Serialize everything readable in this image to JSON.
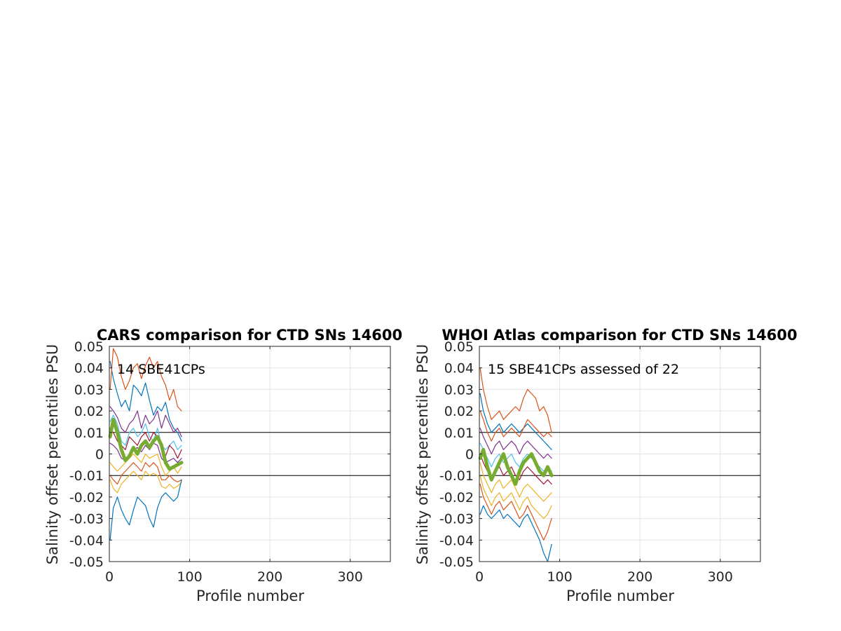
{
  "chart_data": [
    {
      "type": "line",
      "title": "CARS comparison for CTD SNs 14600",
      "xlabel": "Profile number",
      "ylabel": "Salinity offset percentiles PSU",
      "annotation": "14 SBE41CPs",
      "xlim": [
        0,
        350
      ],
      "ylim": [
        -0.05,
        0.05
      ],
      "xticks": [
        0,
        100,
        200,
        300
      ],
      "xtick_labels": [
        "0",
        "100",
        "200",
        "300"
      ],
      "yticks": [
        0.05,
        0.04,
        0.03,
        0.02,
        0.01,
        0,
        -0.01,
        -0.02,
        -0.03,
        -0.04,
        -0.05
      ],
      "ytick_labels": [
        "0.05",
        "0.04",
        "0.03",
        "0.02",
        "0.01",
        "0",
        "-0.01",
        "-0.02",
        "-0.03",
        "-0.04",
        "-0.05"
      ],
      "grid": true,
      "reference_lines": [
        0.01,
        -0.01
      ],
      "series": [
        {
          "color": "#0072BD",
          "x": [
            1,
            5,
            10,
            15,
            20,
            25,
            30,
            35,
            40,
            45,
            50,
            55,
            60,
            65,
            70,
            75,
            80,
            85,
            90
          ],
          "y": [
            0.043,
            0.035,
            0.028,
            0.022,
            0.025,
            0.02,
            0.032,
            0.03,
            0.027,
            0.033,
            0.025,
            0.018,
            0.022,
            0.02,
            0.024,
            0.016,
            0.012,
            0.01,
            0.006
          ]
        },
        {
          "color": "#D95319",
          "x": [
            1,
            5,
            10,
            15,
            20,
            25,
            30,
            35,
            40,
            45,
            50,
            55,
            60,
            65,
            70,
            75,
            80,
            85,
            90
          ],
          "y": [
            0.03,
            0.049,
            0.045,
            0.036,
            0.03,
            0.034,
            0.04,
            0.042,
            0.035,
            0.041,
            0.045,
            0.04,
            0.043,
            0.036,
            0.032,
            0.025,
            0.03,
            0.022,
            0.02
          ]
        },
        {
          "color": "#7E2F8E",
          "x": [
            1,
            5,
            10,
            15,
            20,
            25,
            30,
            35,
            40,
            45,
            50,
            55,
            60,
            65,
            70,
            75,
            80,
            85,
            90
          ],
          "y": [
            0.022,
            0.02,
            0.017,
            0.012,
            0.01,
            0.014,
            0.016,
            0.02,
            0.012,
            0.018,
            0.014,
            0.016,
            0.02,
            0.012,
            0.018,
            0.014,
            0.01,
            0.012,
            0.008
          ]
        },
        {
          "color": "#4DBEEE",
          "x": [
            1,
            5,
            10,
            15,
            20,
            25,
            30,
            35,
            40,
            45,
            50,
            55,
            60,
            65,
            70,
            75,
            80,
            85,
            90
          ],
          "y": [
            0.015,
            0.018,
            0.014,
            0.006,
            0.004,
            0.01,
            0.012,
            0.008,
            0.01,
            0.014,
            0.008,
            0.006,
            0.012,
            0.004,
            0.002,
            0.004,
            0.006,
            0.002,
            0.004
          ]
        },
        {
          "color": "#A2142F",
          "x": [
            1,
            5,
            10,
            15,
            20,
            25,
            30,
            35,
            40,
            45,
            50,
            55,
            60,
            65,
            70,
            75,
            80,
            85,
            90
          ],
          "y": [
            0.012,
            0.01,
            0.006,
            0.004,
            0.002,
            0.008,
            0.006,
            0.004,
            0.008,
            0.01,
            0.006,
            0.01,
            0.008,
            0.003,
            -0.001,
            0.004,
            0.002,
            -0.002,
            0.002
          ]
        },
        {
          "color": "#7E2F8E",
          "x": [
            1,
            5,
            10,
            15,
            20,
            25,
            30,
            35,
            40,
            45,
            50,
            55,
            60,
            65,
            70,
            75,
            80,
            85,
            90
          ],
          "y": [
            0.005,
            0.004,
            0.002,
            -0.002,
            -0.003,
            0.0,
            0.002,
            0.003,
            0.001,
            0.004,
            0.002,
            0.005,
            0.004,
            -0.002,
            -0.004,
            -0.003,
            -0.002,
            -0.004,
            -0.002
          ]
        },
        {
          "color": "#EDB120",
          "x": [
            1,
            5,
            10,
            15,
            20,
            25,
            30,
            35,
            40,
            45,
            50,
            55,
            60,
            65,
            70,
            75,
            80,
            85,
            90
          ],
          "y": [
            -0.004,
            -0.006,
            -0.008,
            -0.006,
            -0.004,
            -0.002,
            0.0,
            -0.002,
            -0.004,
            0.0,
            -0.002,
            -0.001,
            0.0,
            -0.006,
            -0.01,
            -0.008,
            -0.006,
            -0.009,
            -0.006
          ]
        },
        {
          "color": "#D95319",
          "x": [
            1,
            5,
            10,
            15,
            20,
            25,
            30,
            35,
            40,
            45,
            50,
            55,
            60,
            65,
            70,
            75,
            80,
            85,
            90
          ],
          "y": [
            -0.01,
            -0.012,
            -0.014,
            -0.01,
            -0.008,
            -0.006,
            -0.004,
            -0.006,
            -0.008,
            -0.004,
            -0.006,
            -0.004,
            -0.006,
            -0.012,
            -0.012,
            -0.01,
            -0.012,
            -0.013,
            -0.012
          ]
        },
        {
          "color": "#EDB120",
          "x": [
            1,
            5,
            10,
            15,
            20,
            25,
            30,
            35,
            40,
            45,
            50,
            55,
            60,
            65,
            70,
            75,
            80,
            85,
            90
          ],
          "y": [
            -0.012,
            -0.016,
            -0.018,
            -0.014,
            -0.012,
            -0.01,
            -0.008,
            -0.01,
            -0.012,
            -0.008,
            -0.01,
            -0.009,
            -0.01,
            -0.015,
            -0.016,
            -0.014,
            -0.016,
            -0.015,
            -0.013
          ]
        },
        {
          "color": "#0072BD",
          "x": [
            1,
            5,
            10,
            15,
            20,
            25,
            30,
            35,
            40,
            45,
            50,
            55,
            60,
            65,
            70,
            75,
            80,
            85,
            90
          ],
          "y": [
            -0.04,
            -0.025,
            -0.02,
            -0.026,
            -0.03,
            -0.033,
            -0.026,
            -0.02,
            -0.022,
            -0.024,
            -0.03,
            -0.034,
            -0.025,
            -0.02,
            -0.018,
            -0.02,
            -0.022,
            -0.02,
            -0.012
          ]
        },
        {
          "color": "#77AC30",
          "width": 5,
          "x": [
            1,
            5,
            10,
            15,
            20,
            25,
            30,
            35,
            40,
            45,
            50,
            55,
            60,
            65,
            70,
            75,
            80,
            85,
            90
          ],
          "y": [
            0.008,
            0.016,
            0.01,
            0.002,
            -0.003,
            -0.001,
            0.003,
            0.0,
            0.004,
            0.006,
            0.003,
            0.006,
            0.008,
            0.004,
            -0.004,
            -0.007,
            -0.006,
            -0.005,
            -0.004
          ]
        }
      ]
    },
    {
      "type": "line",
      "title": "WHOI Atlas comparison for CTD SNs 14600",
      "xlabel": "Profile number",
      "ylabel": "Salinity offset percentiles PSU",
      "annotation": "15 SBE41CPs assessed of 22",
      "xlim": [
        0,
        350
      ],
      "ylim": [
        -0.05,
        0.05
      ],
      "xticks": [
        0,
        100,
        200,
        300
      ],
      "xtick_labels": [
        "0",
        "100",
        "200",
        "300"
      ],
      "yticks": [
        0.05,
        0.04,
        0.03,
        0.02,
        0.01,
        0,
        -0.01,
        -0.02,
        -0.03,
        -0.04,
        -0.05
      ],
      "ytick_labels": [
        "0.05",
        "0.04",
        "0.03",
        "0.02",
        "0.01",
        "0",
        "-0.01",
        "-0.02",
        "-0.03",
        "-0.04",
        "-0.05"
      ],
      "grid": true,
      "reference_lines": [
        0.01,
        -0.01
      ],
      "series": [
        {
          "color": "#D95319",
          "x": [
            1,
            5,
            10,
            15,
            20,
            25,
            30,
            35,
            40,
            45,
            50,
            55,
            60,
            65,
            70,
            75,
            80,
            85,
            90
          ],
          "y": [
            0.04,
            0.03,
            0.022,
            0.016,
            0.018,
            0.02,
            0.016,
            0.018,
            0.02,
            0.022,
            0.02,
            0.026,
            0.03,
            0.028,
            0.026,
            0.02,
            0.022,
            0.018,
            0.01
          ]
        },
        {
          "color": "#0072BD",
          "x": [
            1,
            5,
            10,
            15,
            20,
            25,
            30,
            35,
            40,
            45,
            50,
            55,
            60,
            65,
            70,
            75,
            80,
            85,
            90
          ],
          "y": [
            0.028,
            0.02,
            0.014,
            0.01,
            0.012,
            0.014,
            0.01,
            0.012,
            0.014,
            0.012,
            0.01,
            0.012,
            0.014,
            0.012,
            0.01,
            0.008,
            0.006,
            0.004,
            0.002
          ]
        },
        {
          "color": "#D95319",
          "x": [
            1,
            5,
            10,
            15,
            20,
            25,
            30,
            35,
            40,
            45,
            50,
            55,
            60,
            65,
            70,
            75,
            80,
            85,
            90
          ],
          "y": [
            0.02,
            0.016,
            0.01,
            0.006,
            0.01,
            0.012,
            0.008,
            0.01,
            0.012,
            0.01,
            0.008,
            0.012,
            0.016,
            0.014,
            0.012,
            0.01,
            0.008,
            0.01,
            0.008
          ]
        },
        {
          "color": "#7E2F8E",
          "x": [
            1,
            5,
            10,
            15,
            20,
            25,
            30,
            35,
            40,
            45,
            50,
            55,
            60,
            65,
            70,
            75,
            80,
            85,
            90
          ],
          "y": [
            0.012,
            0.008,
            0.004,
            0.0,
            0.004,
            0.006,
            0.002,
            0.004,
            0.006,
            0.004,
            0.0,
            0.004,
            0.006,
            0.004,
            0.002,
            0.0,
            -0.002,
            0.0,
            -0.002
          ]
        },
        {
          "color": "#4DBEEE",
          "x": [
            1,
            5,
            10,
            15,
            20,
            25,
            30,
            35,
            40,
            45,
            50,
            55,
            60,
            65,
            70,
            75,
            80,
            85,
            90
          ],
          "y": [
            0.005,
            0.002,
            -0.002,
            -0.006,
            -0.002,
            0.0,
            -0.004,
            -0.002,
            0.0,
            -0.004,
            -0.006,
            -0.002,
            0.0,
            -0.002,
            -0.004,
            -0.006,
            -0.008,
            -0.006,
            -0.008
          ]
        },
        {
          "color": "#A2142F",
          "x": [
            1,
            5,
            10,
            15,
            20,
            25,
            30,
            35,
            40,
            45,
            50,
            55,
            60,
            65,
            70,
            75,
            80,
            85,
            90
          ],
          "y": [
            0.0,
            -0.004,
            -0.008,
            -0.012,
            -0.008,
            -0.006,
            -0.01,
            -0.008,
            -0.006,
            -0.01,
            -0.012,
            -0.008,
            -0.006,
            -0.008,
            -0.01,
            -0.012,
            -0.014,
            -0.012,
            -0.014
          ]
        },
        {
          "color": "#EDB120",
          "x": [
            1,
            5,
            10,
            15,
            20,
            25,
            30,
            35,
            40,
            45,
            50,
            55,
            60,
            65,
            70,
            75,
            80,
            85,
            90
          ],
          "y": [
            -0.004,
            -0.01,
            -0.014,
            -0.018,
            -0.014,
            -0.012,
            -0.016,
            -0.014,
            -0.012,
            -0.016,
            -0.02,
            -0.016,
            -0.014,
            -0.016,
            -0.018,
            -0.02,
            -0.022,
            -0.02,
            -0.018
          ]
        },
        {
          "color": "#EDB120",
          "x": [
            1,
            5,
            10,
            15,
            20,
            25,
            30,
            35,
            40,
            45,
            50,
            55,
            60,
            65,
            70,
            75,
            80,
            85,
            90
          ],
          "y": [
            -0.01,
            -0.016,
            -0.02,
            -0.024,
            -0.02,
            -0.018,
            -0.022,
            -0.02,
            -0.018,
            -0.022,
            -0.026,
            -0.022,
            -0.02,
            -0.024,
            -0.026,
            -0.028,
            -0.03,
            -0.028,
            -0.024
          ]
        },
        {
          "color": "#D95319",
          "x": [
            1,
            5,
            10,
            15,
            20,
            25,
            30,
            35,
            40,
            45,
            50,
            55,
            60,
            65,
            70,
            75,
            80,
            85,
            90
          ],
          "y": [
            -0.014,
            -0.02,
            -0.024,
            -0.028,
            -0.024,
            -0.022,
            -0.026,
            -0.024,
            -0.022,
            -0.026,
            -0.03,
            -0.028,
            -0.024,
            -0.028,
            -0.032,
            -0.036,
            -0.04,
            -0.036,
            -0.03
          ]
        },
        {
          "color": "#0072BD",
          "x": [
            1,
            5,
            10,
            15,
            20,
            25,
            30,
            35,
            40,
            45,
            50,
            55,
            60,
            65,
            70,
            75,
            80,
            85,
            90
          ],
          "y": [
            -0.028,
            -0.024,
            -0.028,
            -0.03,
            -0.028,
            -0.026,
            -0.03,
            -0.028,
            -0.03,
            -0.032,
            -0.034,
            -0.03,
            -0.028,
            -0.032,
            -0.036,
            -0.04,
            -0.046,
            -0.05,
            -0.042
          ]
        },
        {
          "color": "#77AC30",
          "width": 5,
          "x": [
            1,
            5,
            10,
            15,
            20,
            25,
            30,
            35,
            40,
            45,
            50,
            55,
            60,
            65,
            70,
            75,
            80,
            85,
            90
          ],
          "y": [
            -0.002,
            0.002,
            -0.006,
            -0.012,
            -0.008,
            -0.004,
            0.0,
            -0.006,
            -0.01,
            -0.014,
            -0.008,
            -0.004,
            -0.002,
            0.0,
            -0.004,
            -0.008,
            -0.01,
            -0.006,
            -0.01
          ]
        }
      ]
    }
  ]
}
